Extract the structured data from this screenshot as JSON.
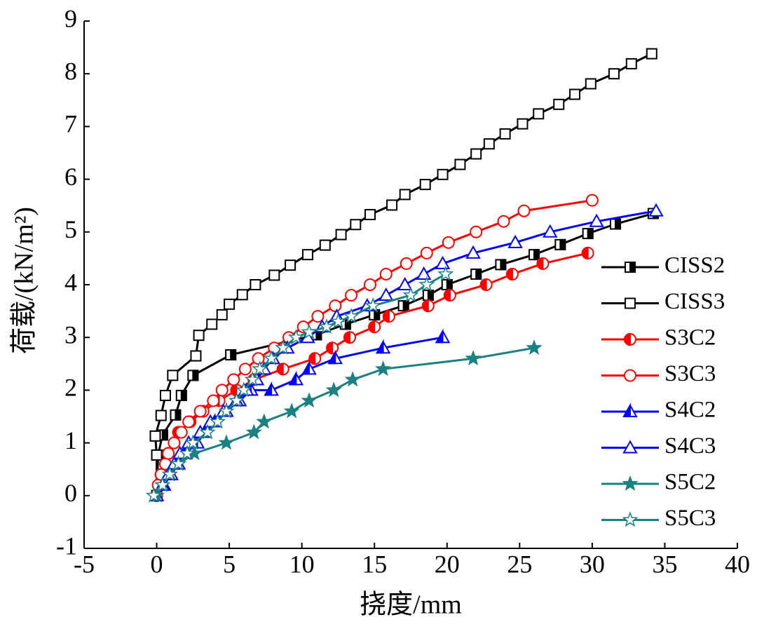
{
  "chart_data": {
    "type": "line",
    "xlabel": "挠度/mm",
    "ylabel": "荷载/(kN/m²)",
    "xlim": [
      -5,
      40
    ],
    "ylim": [
      -1,
      9
    ],
    "xticks": [
      -5,
      0,
      5,
      10,
      15,
      20,
      25,
      30,
      35,
      40
    ],
    "yticks": [
      -1,
      0,
      1,
      2,
      3,
      4,
      5,
      6,
      7,
      8,
      9
    ],
    "legend": "right",
    "series": [
      {
        "name": "CISS2",
        "color": "#000000",
        "marker": "square",
        "fill": "half-right",
        "x": [
          0,
          0.1,
          0.4,
          1.3,
          1.7,
          2.5,
          5.1,
          11,
          13,
          15,
          17,
          18.7,
          20,
          22,
          23.7,
          26,
          27.8,
          29.7,
          31.6,
          34.2
        ],
        "values": [
          0,
          0.77,
          1.15,
          1.53,
          1.9,
          2.28,
          2.67,
          3.05,
          3.25,
          3.43,
          3.6,
          3.8,
          4.0,
          4.2,
          4.38,
          4.57,
          4.76,
          4.97,
          5.15,
          5.35
        ]
      },
      {
        "name": "CISS3",
        "color": "#000000",
        "marker": "square",
        "fill": "open",
        "x": [
          0,
          0,
          -0.1,
          0.3,
          0.6,
          1.1,
          2.7,
          2.9,
          3.8,
          4.5,
          5,
          5.9,
          6.8,
          8.1,
          9.2,
          10.4,
          11.6,
          12.7,
          13.7,
          14.7,
          16.2,
          17.1,
          18.5,
          19.7,
          20.9,
          22,
          22.9,
          24,
          25.2,
          26.3,
          27.7,
          28.8,
          29.9,
          31.5,
          32.7,
          34.1
        ],
        "values": [
          0,
          0.77,
          1.13,
          1.52,
          1.9,
          2.28,
          2.65,
          3.04,
          3.25,
          3.43,
          3.63,
          3.81,
          4.0,
          4.18,
          4.37,
          4.57,
          4.75,
          4.95,
          5.14,
          5.33,
          5.51,
          5.71,
          5.9,
          6.09,
          6.28,
          6.48,
          6.67,
          6.86,
          7.05,
          7.24,
          7.42,
          7.61,
          7.81,
          8.0,
          8.19,
          8.38
        ]
      },
      {
        "name": "S3C2",
        "color": "#ff0000",
        "marker": "circle",
        "fill": "half-left",
        "x": [
          0,
          0.3,
          0.8,
          1.5,
          2.3,
          3.2,
          4.3,
          5.5,
          6.7,
          8.7,
          10.9,
          12.1,
          13.3,
          15,
          16,
          18.7,
          20.2,
          22.7,
          24.5,
          26.6,
          29.7
        ],
        "values": [
          0,
          0.4,
          0.8,
          1.2,
          1.4,
          1.6,
          1.8,
          2.0,
          2.2,
          2.4,
          2.6,
          2.8,
          3.0,
          3.2,
          3.4,
          3.6,
          3.8,
          4.0,
          4.2,
          4.4,
          4.6
        ]
      },
      {
        "name": "S3C3",
        "color": "#ff0000",
        "marker": "circle",
        "fill": "open",
        "x": [
          0,
          0.1,
          0.3,
          0.6,
          0.8,
          1.2,
          1.7,
          2.2,
          3,
          3.9,
          4.5,
          5.3,
          6.1,
          7,
          8.1,
          9.1,
          10.1,
          11.1,
          12.3,
          13.4,
          14.7,
          15.8,
          17.2,
          18.6,
          20.1,
          22,
          23.9,
          25.3,
          30
        ],
        "values": [
          0,
          0.2,
          0.4,
          0.6,
          0.8,
          1.0,
          1.2,
          1.4,
          1.6,
          1.8,
          2.0,
          2.2,
          2.4,
          2.6,
          2.8,
          3.0,
          3.2,
          3.4,
          3.6,
          3.8,
          4.0,
          4.2,
          4.4,
          4.6,
          4.8,
          5.0,
          5.2,
          5.4,
          5.6
        ]
      },
      {
        "name": "S4C2",
        "color": "#0000ff",
        "marker": "triangle",
        "fill": "half-left",
        "x": [
          0,
          0.5,
          1,
          1.5,
          2,
          2.8,
          3.3,
          4,
          4.8,
          5.7,
          6.5,
          7.9,
          9.6,
          10.5,
          12.3,
          15.6,
          19.7
        ],
        "values": [
          0,
          0.2,
          0.4,
          0.6,
          0.8,
          1.0,
          1.2,
          1.4,
          1.6,
          1.8,
          2.0,
          2.0,
          2.2,
          2.4,
          2.6,
          2.8,
          3.0
        ]
      },
      {
        "name": "S4C3",
        "color": "#0000ff",
        "marker": "triangle",
        "fill": "open",
        "x": [
          0,
          0.4,
          0.8,
          1.2,
          1.6,
          2.2,
          3,
          3.7,
          4.6,
          5.5,
          6.2,
          6.9,
          7.4,
          8,
          9,
          10.4,
          11.4,
          12.4,
          14.5,
          15.8,
          17.1,
          18.4,
          19.7,
          21.8,
          24.7,
          27.1,
          30.3,
          34.4
        ],
        "values": [
          0,
          0.2,
          0.4,
          0.6,
          0.8,
          1.0,
          1.2,
          1.4,
          1.6,
          1.8,
          2.0,
          2.2,
          2.4,
          2.6,
          2.8,
          3.0,
          3.2,
          3.4,
          3.6,
          3.8,
          4.0,
          4.2,
          4.4,
          4.6,
          4.8,
          5.0,
          5.2,
          5.4
        ]
      },
      {
        "name": "S5C2",
        "color": "#1a8080",
        "marker": "star",
        "fill": "filled",
        "x": [
          0,
          0.4,
          0.9,
          1.5,
          2.6,
          4.8,
          6.7,
          7.4,
          9.3,
          10.5,
          12.2,
          13.5,
          15.6,
          21.8,
          26
        ],
        "values": [
          0,
          0.2,
          0.4,
          0.6,
          0.8,
          1.0,
          1.2,
          1.4,
          1.6,
          1.8,
          2.0,
          2.2,
          2.4,
          2.6,
          2.8
        ]
      },
      {
        "name": "S5C3",
        "color": "#1a8080",
        "marker": "star",
        "fill": "open",
        "x": [
          -0.2,
          0.4,
          0.9,
          1.5,
          2.1,
          2.5,
          3.5,
          4.2,
          4.8,
          5.5,
          6,
          6.6,
          7.1,
          7.9,
          8.7,
          9.6,
          10.5,
          11.7,
          12.5,
          13.4,
          14.9,
          17.5,
          18.6,
          19.9
        ],
        "values": [
          0,
          0.2,
          0.4,
          0.6,
          0.8,
          1.0,
          1.2,
          1.4,
          1.6,
          1.8,
          2.0,
          2.2,
          2.4,
          2.6,
          2.8,
          3.0,
          3.1,
          3.2,
          3.3,
          3.4,
          3.6,
          3.8,
          4.0,
          4.2
        ]
      }
    ]
  }
}
